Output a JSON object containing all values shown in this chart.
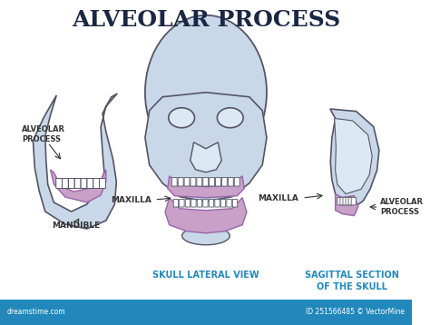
{
  "title": "ALVEOLAR PROCESS",
  "title_color": "#1a2744",
  "title_fontsize": 18,
  "background_color": "#ffffff",
  "footer_color": "#2288bb",
  "footer_text_left": "dreamstime.com",
  "footer_text_right": "ID 251566485 © VectorMine",
  "labels": {
    "alveolar_process_left": "ALVEOLAR\nPROCESS",
    "mandible": "MANDIBLE",
    "maxilla": "MAXILLA",
    "alveolar_process_right": "ALVEOLAR\nPROCESS",
    "skull_lateral": "SKULL LATERAL VIEW",
    "sagittal": "SAGITTAL SECTION\nOF THE SKULL"
  },
  "label_color": "#333333",
  "label_color_cyan": "#2288bb",
  "skull_fill": "#c8d8e8",
  "skull_stroke": "#555566",
  "alveolar_fill": "#c8a0c8",
  "alveolar_stroke": "#9966aa",
  "tooth_fill": "#ffffff",
  "tooth_stroke": "#555566",
  "eye_fill": "#dce8f4"
}
